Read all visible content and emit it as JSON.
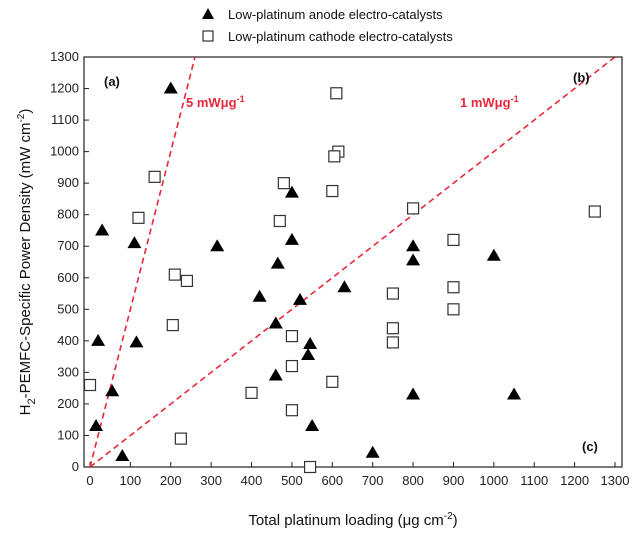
{
  "chart_data": {
    "type": "scatter",
    "xlabel": "Total platinum loading (μg cm",
    "xlabel_sup": "-2",
    "xlabel_end": ")",
    "ylabel_parts": [
      "H",
      "2",
      "-PEMFC-Specific Power Density (mW cm",
      "-2",
      ")"
    ],
    "xlim": [
      0,
      1300
    ],
    "ylim": [
      0,
      1300
    ],
    "xticks": [
      0,
      100,
      200,
      300,
      400,
      500,
      600,
      700,
      800,
      900,
      1000,
      1100,
      1200,
      1300
    ],
    "yticks": [
      0,
      100,
      200,
      300,
      400,
      500,
      600,
      700,
      800,
      900,
      1000,
      1100,
      1200,
      1300
    ],
    "grid": false,
    "legend_position": "top",
    "series": [
      {
        "name": "Low-platinum anode electro-catalysts",
        "marker": "filled-triangle",
        "color": "#000000",
        "points": [
          [
            200,
            1200
          ],
          [
            30,
            750
          ],
          [
            110,
            710
          ],
          [
            315,
            700
          ],
          [
            115,
            395
          ],
          [
            20,
            400
          ],
          [
            55,
            240
          ],
          [
            15,
            130
          ],
          [
            80,
            35
          ],
          [
            500,
            870
          ],
          [
            500,
            720
          ],
          [
            465,
            645
          ],
          [
            420,
            540
          ],
          [
            460,
            455
          ],
          [
            520,
            530
          ],
          [
            630,
            570
          ],
          [
            545,
            390
          ],
          [
            540,
            355
          ],
          [
            460,
            290
          ],
          [
            550,
            130
          ],
          [
            700,
            45
          ],
          [
            800,
            700
          ],
          [
            800,
            655
          ],
          [
            800,
            230
          ],
          [
            1000,
            670
          ],
          [
            1050,
            230
          ]
        ]
      },
      {
        "name": "Low-platinum cathode electro-catalysts",
        "marker": "open-square",
        "color": "#333333",
        "points": [
          [
            160,
            920
          ],
          [
            120,
            790
          ],
          [
            210,
            610
          ],
          [
            240,
            590
          ],
          [
            205,
            450
          ],
          [
            0,
            260
          ],
          [
            225,
            90
          ],
          [
            610,
            1185
          ],
          [
            615,
            1000
          ],
          [
            605,
            985
          ],
          [
            600,
            875
          ],
          [
            480,
            900
          ],
          [
            470,
            780
          ],
          [
            500,
            415
          ],
          [
            500,
            320
          ],
          [
            400,
            235
          ],
          [
            500,
            180
          ],
          [
            600,
            270
          ],
          [
            545,
            0
          ],
          [
            800,
            820
          ],
          [
            750,
            550
          ],
          [
            750,
            440
          ],
          [
            750,
            395
          ],
          [
            900,
            720
          ],
          [
            900,
            570
          ],
          [
            900,
            500
          ],
          [
            1250,
            810
          ]
        ]
      }
    ],
    "reference_lines": [
      {
        "label": "5 mWμg",
        "label_sup": "-1",
        "slope": 5,
        "color": "#e8283a"
      },
      {
        "label": "1 mWμg",
        "label_sup": "-1",
        "slope": 1,
        "color": "#e8283a"
      }
    ],
    "panel_labels": [
      "(a)",
      "(b)",
      "(c)"
    ]
  }
}
